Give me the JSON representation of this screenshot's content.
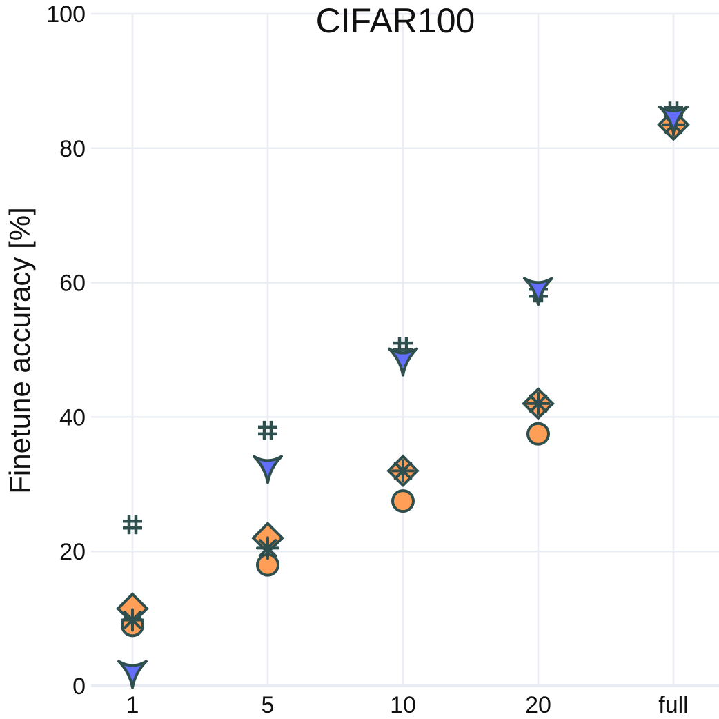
{
  "chart_data": {
    "type": "scatter",
    "title": "CIFAR100",
    "xlabel": "",
    "ylabel": "Finetune accuracy [%]",
    "categories": [
      "1",
      "5",
      "10",
      "20",
      "full"
    ],
    "ylim": [
      0,
      100
    ],
    "yticks": [
      0,
      20,
      40,
      60,
      80,
      100
    ],
    "grid": true,
    "legend": "none",
    "marker_outline_color": "#2f4f4f",
    "series": [
      {
        "marker": "circle",
        "color": "#ff9f57",
        "values": [
          9,
          18,
          27.5,
          37.5,
          83.5
        ]
      },
      {
        "marker": "diamond",
        "color": "#ff9f57",
        "values": [
          11.5,
          22,
          32,
          42,
          83.5
        ]
      },
      {
        "marker": "asterisk",
        "color": "#2f4f4f",
        "values": [
          9.8,
          20.5,
          32,
          42,
          83.5
        ]
      },
      {
        "marker": "hash",
        "color": "#2f4f4f",
        "values": [
          24,
          38,
          50.5,
          58.5,
          85.5
        ]
      },
      {
        "marker": "triangle-down",
        "color": "#636efa",
        "values": [
          2,
          32.5,
          48.5,
          59,
          84.5
        ]
      }
    ]
  }
}
